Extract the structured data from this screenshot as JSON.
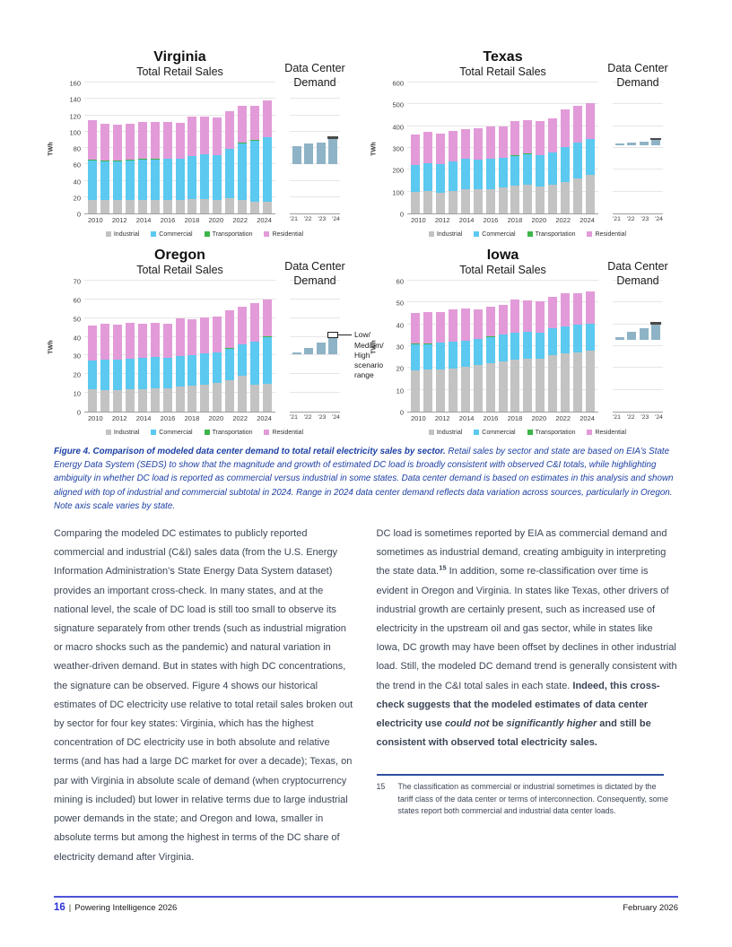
{
  "figure_caption": {
    "bold": "Figure 4. Comparison of modeled data center demand to total retail electricity sales by sector.",
    "rest": " Retail sales by sector and state are based on EIA’s State Energy Data System (SEDS) to show that the magnitude and growth of estimated DC load is broadly consistent with observed C&I totals, while highlighting ambiguity in whether DC load is reported as commercial versus industrial in some states. Data center demand is based on estimates in this analysis and shown aligned with top of industrial and commercial subtotal in 2024. Range in 2024 data center demand reflects data variation across sources, particularly in Oregon. Note axis scale varies by state."
  },
  "body": {
    "left_column": [
      {
        "style": "normal",
        "text": "Comparing the modeled DC estimates to publicly reported commercial and industrial (C&I) sales data (from the U.S. Energy Information Administration’s State Energy Data System dataset) provides an important cross-check. In many states, and at the national level, the scale of DC load is still too small to observe its signature separately from other trends (such as industrial migration or macro shocks such as the pandemic) and natural variation in weather-driven demand. But in states with high DC concentrations, the signature can be observed. Figure 4 shows our historical estimates of DC electricity use relative to total retail sales broken out by sector for four key states: Virginia, which has the highest concentration of DC electricity use in both absolute and relative terms (and has had a large DC market for over a decade); Texas, on par with Virginia in absolute scale of demand (when cryptocurrency mining is included) but lower in relative terms due to large industrial power demands in the state; and Oregon and Iowa, smaller in absolute terms but among the highest in terms of the DC share of electricity demand after Virginia."
      }
    ],
    "right_column": [
      {
        "style": "normal",
        "text": "DC load is sometimes reported by EIA as commercial demand and sometimes as industrial demand, creating ambiguity in interpreting the state data."
      },
      {
        "style": "sup",
        "text": "15"
      },
      {
        "style": "normal",
        "text": " In addition, some re-classification over time is evident in Oregon and Virginia. In states like Texas, other drivers of industrial growth are certainly present, such as increased use of electricity in the upstream oil and gas sector, while in states like Iowa, DC growth may have been offset by declines in other industrial load. Still, the modeled DC demand trend is generally consistent with the trend in the C&I total sales in each state. "
      },
      {
        "style": "bold",
        "text": "Indeed, this cross-check suggests that the modeled estimates of data center electricity use "
      },
      {
        "style": "bolditalic",
        "text": "could not"
      },
      {
        "style": "bold",
        "text": " be "
      },
      {
        "style": "bolditalic",
        "text": "significantly higher"
      },
      {
        "style": "bold",
        "text": " and still be consistent with observed total electricity sales."
      }
    ]
  },
  "footnote": {
    "number": "15",
    "text": "The classification as commercial or industrial sometimes is dictated by the tariff class of the data center or terms of interconnection. Consequently, some states report both commercial and industrial data center loads."
  },
  "footer": {
    "page_number": "16",
    "separator": "|",
    "report_title": "Powering Intelligence 2026",
    "date": "February 2026"
  },
  "chart_data": {
    "type": "bar",
    "colors": {
      "industrial": "#c3c3c3",
      "commercial": "#5bc9f0",
      "transportation": "#3cb54a",
      "residential": "#e29bd8",
      "dc_bar": "#8fb3c6",
      "dc_cap": "#4a4a4a"
    },
    "legend": [
      {
        "key": "industrial",
        "label": "Industrial"
      },
      {
        "key": "commercial",
        "label": "Commercial"
      },
      {
        "key": "transportation",
        "label": "Transportation"
      },
      {
        "key": "residential",
        "label": "Residential"
      }
    ],
    "charts": [
      {
        "state": "Virginia",
        "main_title": "Total Retail Sales",
        "dc_title_lines": [
          "Data Center",
          "Demand"
        ],
        "ylabel": "TWh",
        "ymax": 160,
        "ytick": 20,
        "years": [
          2010,
          2011,
          2012,
          2013,
          2014,
          2015,
          2016,
          2017,
          2018,
          2019,
          2020,
          2021,
          2022,
          2023,
          2024
        ],
        "xticklabels": [
          "2010",
          "2012",
          "2014",
          "2016",
          "2018",
          "2020",
          "2022",
          "2024"
        ],
        "series": {
          "industrial": [
            17,
            17,
            17,
            17,
            17,
            17,
            17,
            17,
            18,
            18,
            17,
            19,
            17,
            14,
            14
          ],
          "commercial": [
            48,
            47,
            47,
            48,
            49,
            49,
            50,
            50,
            52,
            54,
            54,
            60,
            69,
            75,
            79
          ],
          "transportation": [
            0.4,
            0.4,
            0.4,
            0.4,
            0.4,
            0.4,
            0.4,
            0.4,
            0.4,
            0.4,
            0.4,
            0.4,
            0.4,
            0.4,
            0.4
          ],
          "residential": [
            48.6,
            45.6,
            43.6,
            44.6,
            45.6,
            45.6,
            44.6,
            43.6,
            47.6,
            45.6,
            45.6,
            45.6,
            45.6,
            42.6,
            44.6
          ]
        },
        "dc": {
          "labels": [
            "'21",
            "'22",
            "'23",
            "'24"
          ],
          "base": 60,
          "tops": [
            82,
            85,
            87,
            93
          ],
          "cap": [
            91,
            94
          ],
          "cap_style": "filled"
        }
      },
      {
        "state": "Texas",
        "main_title": "Total Retail Sales",
        "dc_title_lines": [
          "Data Center",
          "Demand"
        ],
        "ylabel": "TWh",
        "ymax": 600,
        "ytick": 100,
        "years": [
          2010,
          2011,
          2012,
          2013,
          2014,
          2015,
          2016,
          2017,
          2018,
          2019,
          2020,
          2021,
          2022,
          2023,
          2024
        ],
        "xticklabels": [
          "2010",
          "2012",
          "2014",
          "2016",
          "2018",
          "2020",
          "2022",
          "2024"
        ],
        "series": {
          "industrial": [
            100,
            103,
            95,
            103,
            110,
            110,
            113,
            120,
            128,
            132,
            125,
            132,
            145,
            160,
            178
          ],
          "commercial": [
            121,
            128,
            130,
            134,
            139,
            136,
            138,
            136,
            137,
            141,
            142,
            148,
            159,
            163,
            162
          ],
          "transportation": [
            1,
            1,
            1,
            1,
            1,
            1,
            1,
            1,
            1,
            1,
            1,
            1,
            1,
            1,
            1
          ],
          "residential": [
            138,
            143,
            139,
            142,
            138,
            145,
            145,
            143,
            157,
            154,
            157,
            154,
            172,
            169,
            166
          ]
        },
        "dc": {
          "labels": [
            "'21",
            "'22",
            "'23",
            "'24"
          ],
          "base": 311,
          "tops": [
            320,
            324,
            329,
            341
          ],
          "cap": [
            336,
            345
          ],
          "cap_style": "filled"
        }
      },
      {
        "state": "Oregon",
        "main_title": "Total Retail Sales",
        "dc_title_lines": [
          "Data Center",
          "Demand"
        ],
        "ylabel": "TWh",
        "ymax": 70,
        "ytick": 10,
        "years": [
          2010,
          2011,
          2012,
          2013,
          2014,
          2015,
          2016,
          2017,
          2018,
          2019,
          2020,
          2021,
          2022,
          2023,
          2024
        ],
        "xticklabels": [
          "2010",
          "2012",
          "2014",
          "2016",
          "2018",
          "2020",
          "2022",
          "2024"
        ],
        "series": {
          "industrial": [
            11.8,
            11.7,
            11.7,
            12.0,
            12.2,
            12.3,
            12.5,
            13.2,
            13.8,
            14.3,
            15.3,
            17.0,
            19.0,
            14.2,
            15.0
          ],
          "commercial": [
            15.4,
            16.1,
            16.1,
            16.2,
            16.5,
            16.9,
            16.2,
            16.6,
            16.5,
            16.7,
            16.4,
            16.8,
            16.8,
            23.3,
            25.0
          ],
          "transportation": [
            0.1,
            0.1,
            0.1,
            0.1,
            0.1,
            0.1,
            0.1,
            0.1,
            0.1,
            0.1,
            0.1,
            0.1,
            0.1,
            0.1,
            0.1
          ],
          "residential": [
            18.7,
            19.1,
            18.6,
            19.2,
            18.2,
            18.0,
            18.4,
            20.1,
            18.8,
            19.2,
            19.2,
            20.1,
            20.4,
            20.2,
            19.7
          ]
        },
        "dc": {
          "labels": [
            "'21",
            "'22",
            "'23",
            "'24"
          ],
          "base": 30.5,
          "tops": [
            31.8,
            34.2,
            36.8,
            40.2
          ],
          "cap": [
            39.5,
            42.5
          ],
          "cap_style": "outline"
        },
        "annotation": {
          "lines": [
            "Low/",
            "Medium/",
            "High",
            "scenario",
            "range"
          ]
        }
      },
      {
        "state": "Iowa",
        "main_title": "Total Retail Sales",
        "dc_title_lines": [
          "Data Center",
          "Demand"
        ],
        "ylabel": "TWh",
        "ymax": 60,
        "ytick": 10,
        "years": [
          2010,
          2011,
          2012,
          2013,
          2014,
          2015,
          2016,
          2017,
          2018,
          2019,
          2020,
          2021,
          2022,
          2023,
          2024
        ],
        "xticklabels": [
          "2010",
          "2012",
          "2014",
          "2016",
          "2018",
          "2020",
          "2022",
          "2024"
        ],
        "series": {
          "industrial": [
            19.0,
            19.3,
            19.5,
            19.7,
            20.7,
            21.5,
            22.0,
            23.2,
            23.7,
            24.2,
            24.2,
            26.0,
            26.7,
            27.0,
            27.8
          ],
          "commercial": [
            12.0,
            11.7,
            12.0,
            12.3,
            11.8,
            11.7,
            12.3,
            12.0,
            12.5,
            12.2,
            11.8,
            12.2,
            12.3,
            12.8,
            12.5
          ],
          "transportation": [
            0.1,
            0.1,
            0.1,
            0.1,
            0.1,
            0.1,
            0.1,
            0.1,
            0.1,
            0.1,
            0.1,
            0.1,
            0.1,
            0.1,
            0.1
          ],
          "residential": [
            14.2,
            14.4,
            14.2,
            14.6,
            14.7,
            13.7,
            13.9,
            13.7,
            14.9,
            14.5,
            14.5,
            14.5,
            15.1,
            14.5,
            14.6
          ]
        },
        "dc": {
          "labels": [
            "'21",
            "'22",
            "'23",
            "'24"
          ],
          "base": 32.8,
          "tops": [
            34.2,
            36.6,
            38.2,
            40.4
          ],
          "cap": [
            39.8,
            41.2
          ],
          "cap_style": "filled"
        }
      }
    ]
  }
}
